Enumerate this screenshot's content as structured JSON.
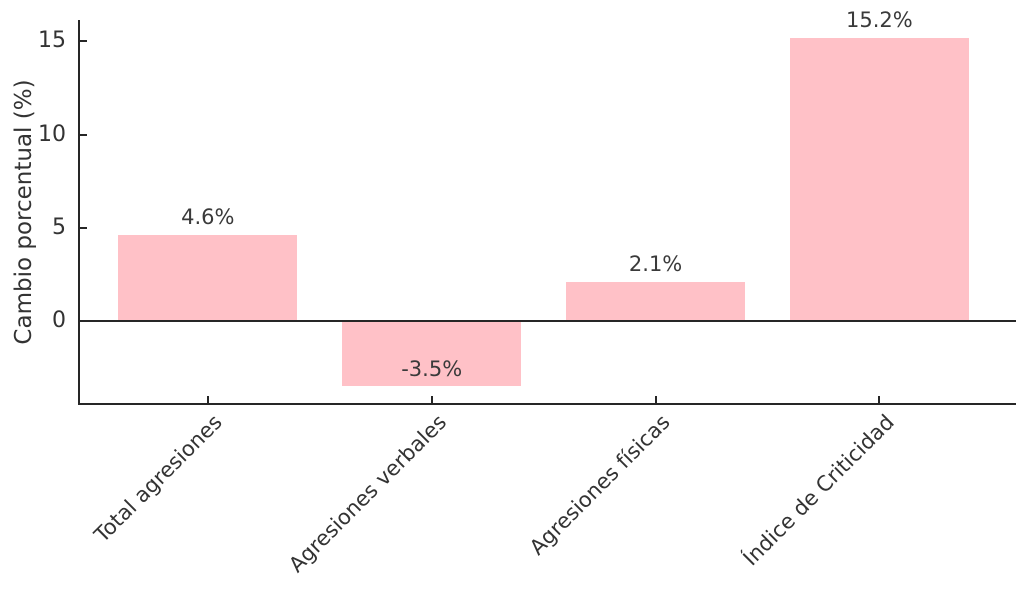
{
  "chart_data": {
    "type": "bar",
    "title": "",
    "xlabel": "",
    "ylabel": "Cambio porcentual (%)",
    "categories": [
      "Total agresiones",
      "Agresiones verbales",
      "Agresiones físicas",
      "Índice de Criticidad"
    ],
    "values": [
      4.6,
      -3.5,
      2.1,
      15.2
    ],
    "value_labels": [
      "4.6%",
      "-3.5%",
      "2.1%",
      "15.2%"
    ],
    "yticks": [
      0,
      5,
      10,
      15
    ],
    "ytick_labels": [
      "0",
      "5",
      "10",
      "15"
    ],
    "ylim": [
      -4.44,
      16.14
    ],
    "xlim": [
      -0.58,
      3.61
    ],
    "bar_rel_width": 0.8,
    "grid": false,
    "legend": null,
    "colors": {
      "bar_fill": "#ffc1c7",
      "axis_line": "#262626",
      "text": "#333333",
      "background": "#ffffff"
    }
  }
}
